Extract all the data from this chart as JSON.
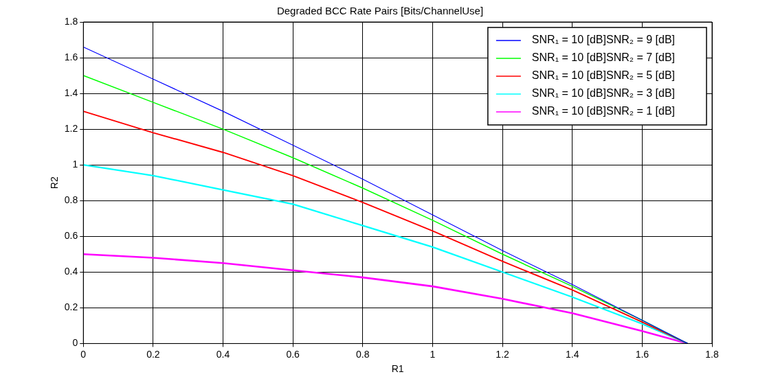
{
  "chart_data": {
    "type": "line",
    "title": "Degraded BCC Rate Pairs [Bits/ChannelUse]",
    "xlabel": "R1",
    "ylabel": "R2",
    "x": [
      0,
      0.2,
      0.4,
      0.6,
      0.8,
      1.0,
      1.2,
      1.4,
      1.6,
      1.73
    ],
    "series": [
      {
        "name": "SNR₁ = 10 [dB]SNR₂ = 9 [dB]",
        "color": "#0000ff",
        "values": [
          1.66,
          1.48,
          1.3,
          1.11,
          0.92,
          0.72,
          0.52,
          0.33,
          0.13,
          0
        ]
      },
      {
        "name": "SNR₁ = 10 [dB]SNR₂ = 7 [dB]",
        "color": "#00ff00",
        "values": [
          1.5,
          1.35,
          1.2,
          1.04,
          0.87,
          0.69,
          0.5,
          0.32,
          0.13,
          0
        ]
      },
      {
        "name": "SNR₁ = 10 [dB]SNR₂ = 5 [dB]",
        "color": "#ff0000",
        "values": [
          1.3,
          1.18,
          1.07,
          0.94,
          0.79,
          0.63,
          0.46,
          0.3,
          0.12,
          0
        ]
      },
      {
        "name": "SNR₁ = 10 [dB]SNR₂ = 3 [dB]",
        "color": "#00ffff",
        "values": [
          1.0,
          0.94,
          0.86,
          0.78,
          0.66,
          0.54,
          0.4,
          0.26,
          0.11,
          0
        ]
      },
      {
        "name": "SNR₁ = 10 [dB]SNR₂ = 1 [dB]",
        "color": "#ff00ff",
        "values": [
          0.5,
          0.48,
          0.45,
          0.41,
          0.37,
          0.32,
          0.25,
          0.17,
          0.07,
          0
        ]
      }
    ],
    "xlim": [
      0,
      1.8
    ],
    "xticks": [
      0,
      0.2,
      0.4,
      0.6,
      0.8,
      1,
      1.2,
      1.4,
      1.6,
      1.8
    ],
    "ylim": [
      0,
      1.8
    ],
    "yticks": [
      0,
      0.2,
      0.4,
      0.6,
      0.8,
      1,
      1.2,
      1.4,
      1.6,
      1.8
    ],
    "grid": true,
    "legend": "top right",
    "marker": "none",
    "line_style": "solid"
  }
}
